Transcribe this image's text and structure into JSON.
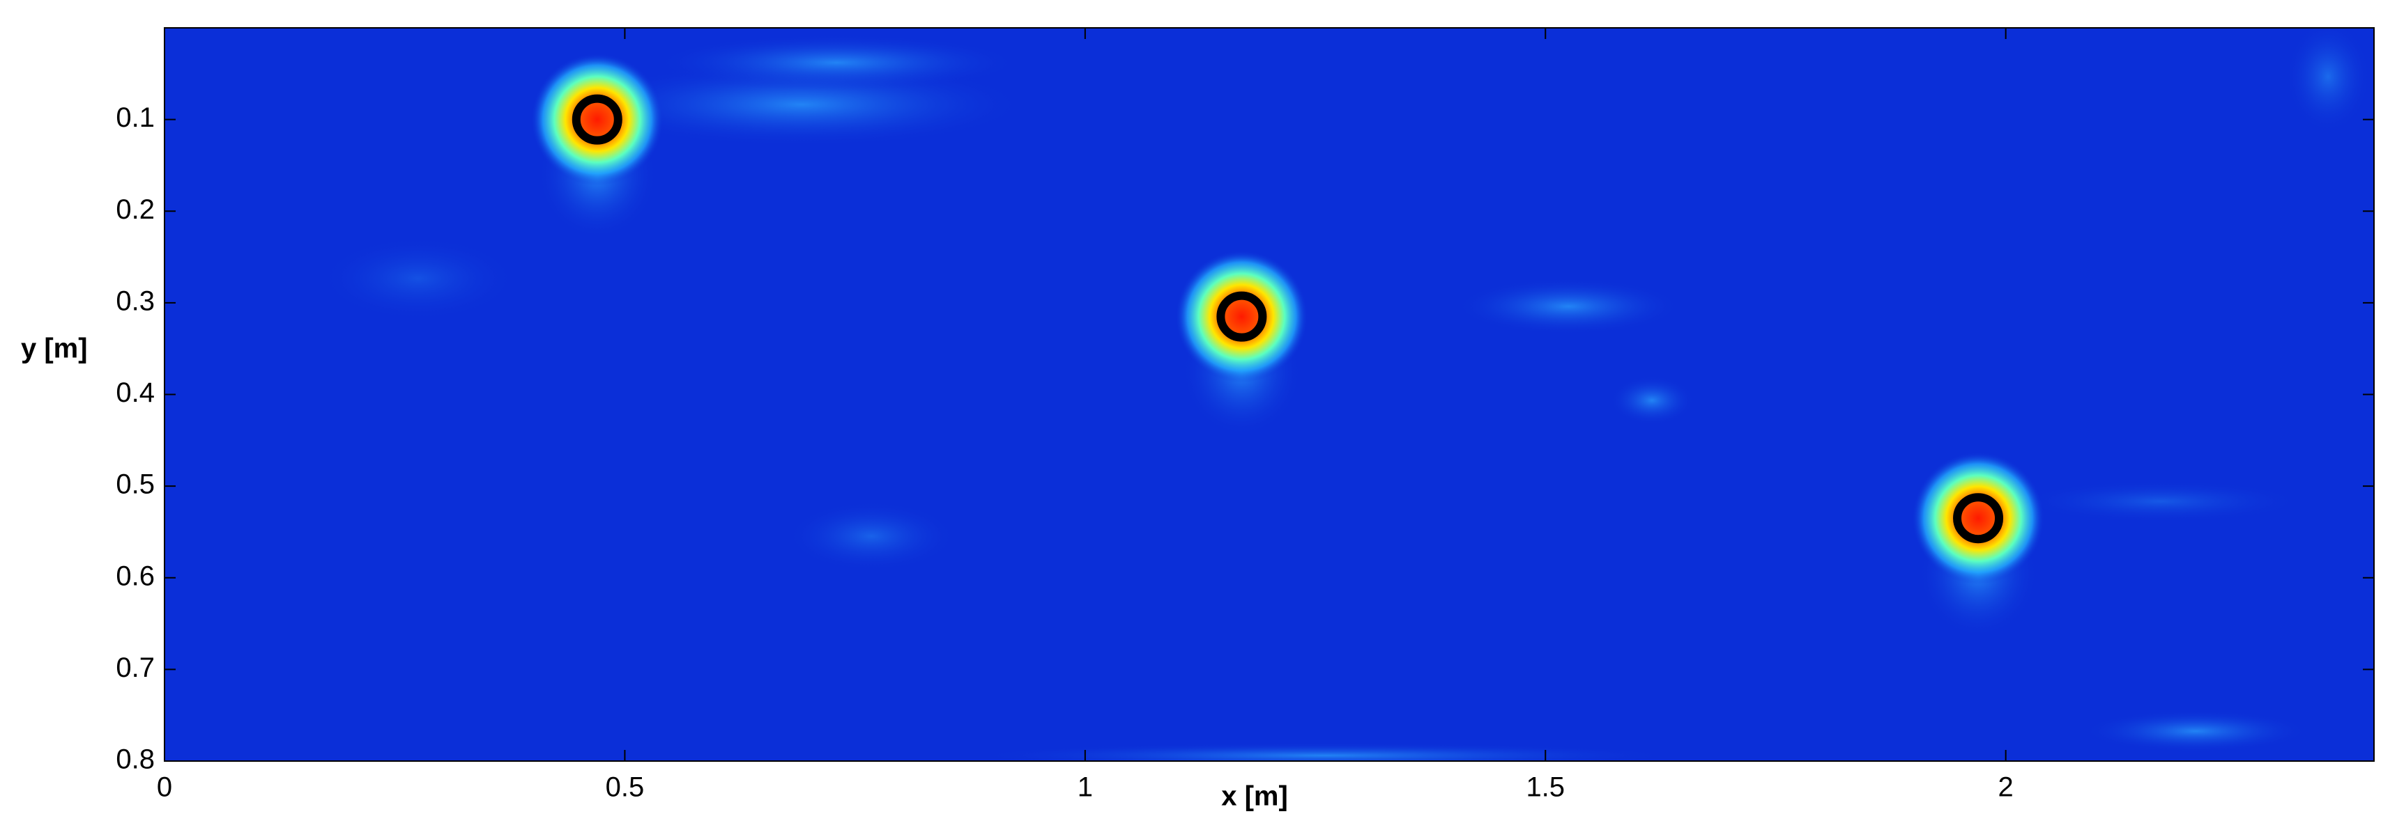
{
  "chart_data": {
    "type": "scatter",
    "x_label": "x [m]",
    "y_label": "y [m]",
    "x": [
      0.47,
      1.17,
      1.97
    ],
    "y": [
      0.1,
      0.315,
      0.535
    ],
    "color": "#000000",
    "background_color": "#0b2fd8",
    "xlim": [
      0,
      2.4
    ],
    "ylim": [
      0,
      0.8
    ],
    "y_inverted": true,
    "xticks": [
      0,
      0.5,
      1,
      1.5,
      2
    ],
    "yticks": [
      0.1,
      0.2,
      0.3,
      0.4,
      0.5,
      0.6,
      0.7,
      0.8
    ]
  }
}
